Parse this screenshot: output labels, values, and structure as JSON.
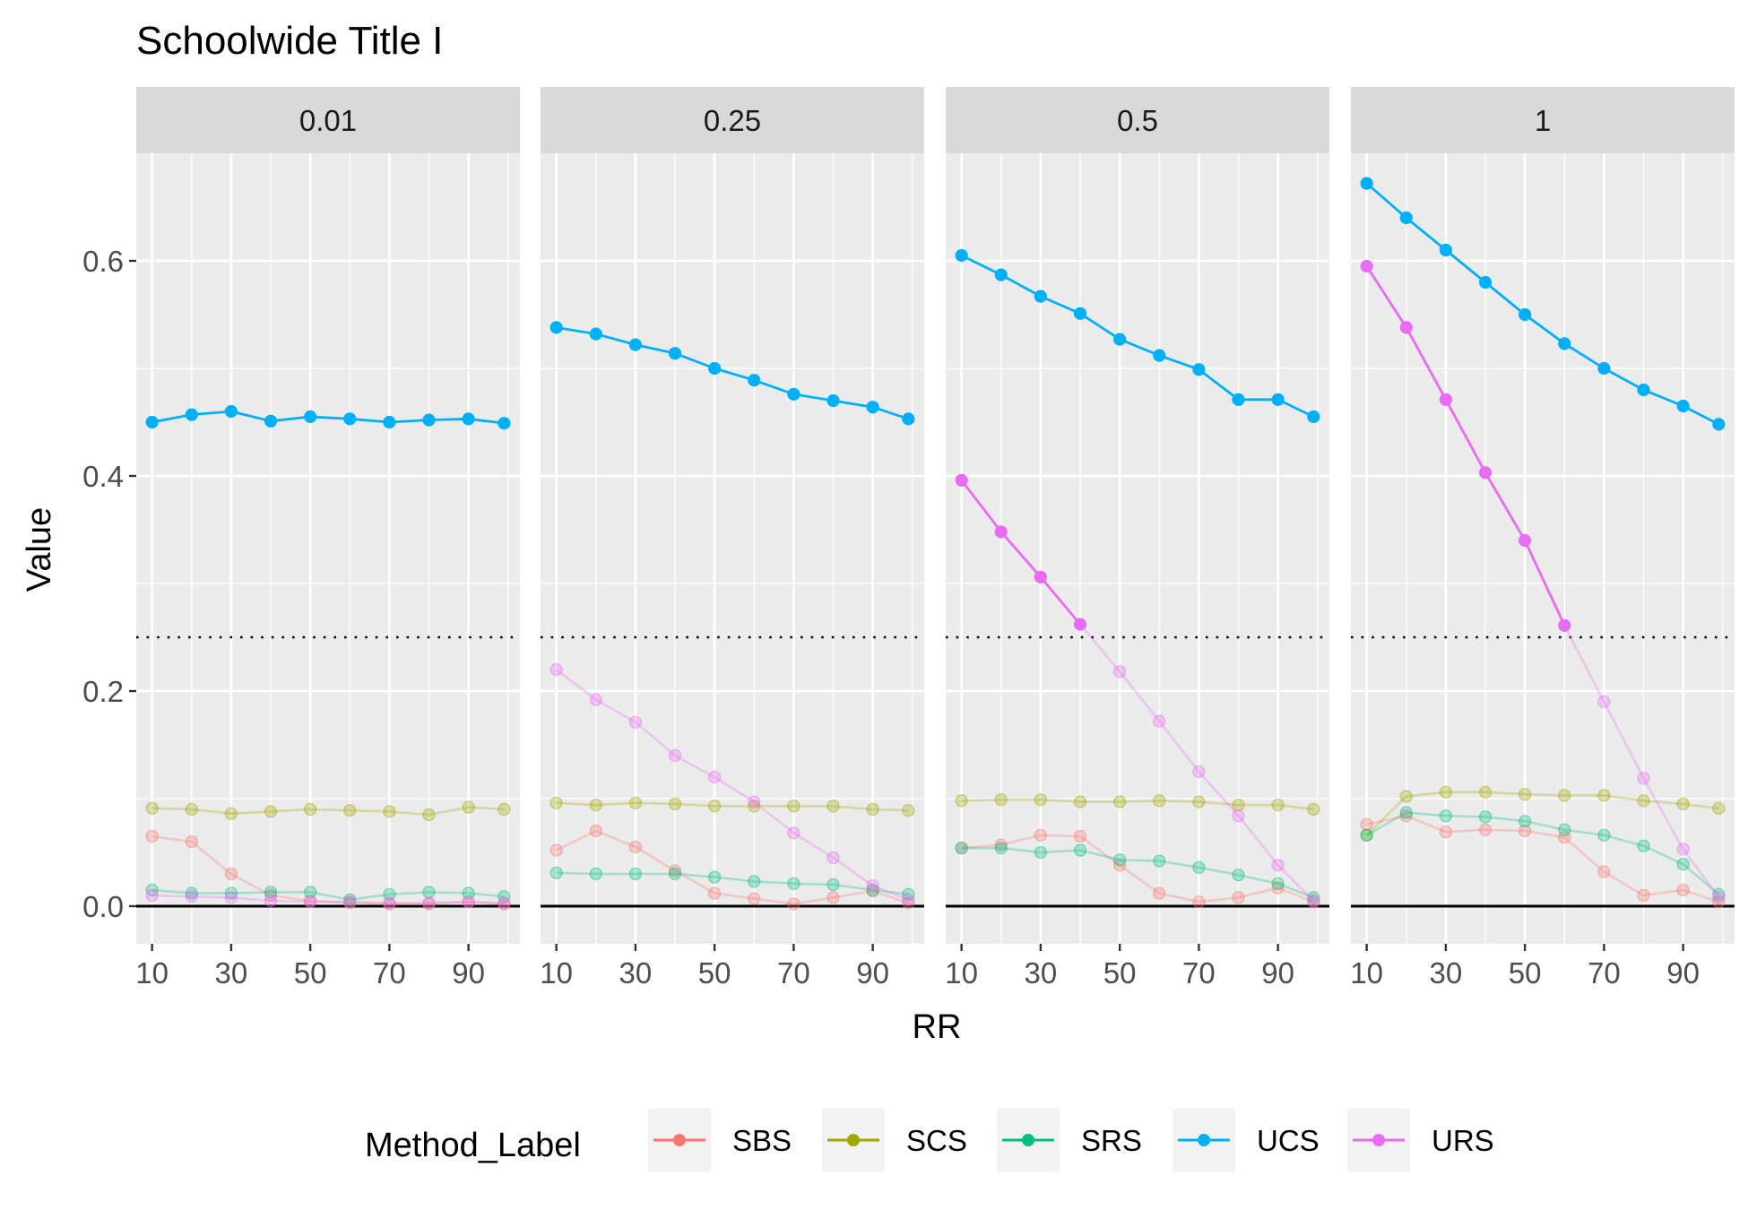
{
  "chart_data": {
    "type": "line",
    "title": "Schoolwide Title I",
    "xlabel": "RR",
    "ylabel": "Value",
    "x": [
      10,
      20,
      30,
      40,
      50,
      60,
      70,
      80,
      90,
      99
    ],
    "x_ticks": [
      10,
      30,
      50,
      70,
      90
    ],
    "x_tick_labels": [
      "10",
      "30",
      "50",
      "70",
      "90"
    ],
    "y_ticks": [
      0.0,
      0.2,
      0.4,
      0.6
    ],
    "y_tick_labels": [
      "0.0",
      "0.2",
      "0.4",
      "0.6"
    ],
    "xlim": [
      6,
      103
    ],
    "ylim": [
      -0.035,
      0.7
    ],
    "reference_lines": [
      {
        "y": 0,
        "style": "solid",
        "color": "#000000"
      },
      {
        "y": 0.25,
        "style": "dotted",
        "color": "#000000"
      }
    ],
    "grid": true,
    "legend": {
      "title": "Method_Label",
      "position": "bottom"
    },
    "colors": {
      "SBS": "#F8766D",
      "SCS": "#A3A500",
      "SRS": "#00BF7D",
      "UCS": "#00B0F6",
      "URS": "#E76BF3",
      "panel_bg": "#EBEBEB",
      "strip_bg": "#D9D9D9"
    },
    "panels": [
      {
        "label": "0.01",
        "series": [
          {
            "name": "SBS",
            "values": [
              0.065,
              0.06,
              0.03,
              0.01,
              0.005,
              0.003,
              0.002,
              0.002,
              0.004,
              0.002
            ],
            "highlight": []
          },
          {
            "name": "SCS",
            "values": [
              0.091,
              0.09,
              0.086,
              0.088,
              0.09,
              0.089,
              0.088,
              0.085,
              0.092,
              0.09
            ],
            "highlight": []
          },
          {
            "name": "SRS",
            "values": [
              0.015,
              0.012,
              0.012,
              0.013,
              0.013,
              0.006,
              0.011,
              0.013,
              0.012,
              0.009
            ],
            "highlight": []
          },
          {
            "name": "UCS",
            "values": [
              0.45,
              0.457,
              0.46,
              0.451,
              0.455,
              0.453,
              0.45,
              0.452,
              0.453,
              0.449
            ],
            "highlight": [
              0,
              1,
              2,
              3,
              4,
              5,
              6,
              7,
              8,
              9
            ]
          },
          {
            "name": "URS",
            "values": [
              0.01,
              0.009,
              0.008,
              0.005,
              0.004,
              0.004,
              0.003,
              0.003,
              0.004,
              0.003
            ],
            "highlight": []
          }
        ]
      },
      {
        "label": "0.25",
        "series": [
          {
            "name": "SBS",
            "values": [
              0.052,
              0.07,
              0.055,
              0.033,
              0.012,
              0.007,
              0.002,
              0.008,
              0.014,
              0.003
            ],
            "highlight": []
          },
          {
            "name": "SCS",
            "values": [
              0.096,
              0.094,
              0.096,
              0.095,
              0.093,
              0.093,
              0.093,
              0.093,
              0.09,
              0.089
            ],
            "highlight": []
          },
          {
            "name": "SRS",
            "values": [
              0.031,
              0.03,
              0.03,
              0.03,
              0.027,
              0.023,
              0.021,
              0.02,
              0.015,
              0.011
            ],
            "highlight": []
          },
          {
            "name": "UCS",
            "values": [
              0.538,
              0.532,
              0.522,
              0.514,
              0.5,
              0.489,
              0.476,
              0.47,
              0.464,
              0.453
            ],
            "highlight": [
              0,
              1,
              2,
              3,
              4,
              5,
              6,
              7,
              8,
              9
            ]
          },
          {
            "name": "URS",
            "values": [
              0.22,
              0.192,
              0.171,
              0.14,
              0.12,
              0.097,
              0.068,
              0.045,
              0.019,
              0.006
            ],
            "highlight": []
          }
        ]
      },
      {
        "label": "0.5",
        "series": [
          {
            "name": "SBS",
            "values": [
              0.054,
              0.057,
              0.066,
              0.065,
              0.038,
              0.012,
              0.004,
              0.008,
              0.017,
              0.004
            ],
            "highlight": []
          },
          {
            "name": "SCS",
            "values": [
              0.098,
              0.099,
              0.099,
              0.097,
              0.097,
              0.098,
              0.097,
              0.094,
              0.094,
              0.09
            ],
            "highlight": []
          },
          {
            "name": "SRS",
            "values": [
              0.054,
              0.054,
              0.05,
              0.052,
              0.043,
              0.042,
              0.036,
              0.029,
              0.021,
              0.008
            ],
            "highlight": []
          },
          {
            "name": "UCS",
            "values": [
              0.605,
              0.587,
              0.567,
              0.551,
              0.527,
              0.512,
              0.499,
              0.471,
              0.471,
              0.455
            ],
            "highlight": [
              0,
              1,
              2,
              3,
              4,
              5,
              6,
              7,
              8,
              9
            ]
          },
          {
            "name": "URS",
            "values": [
              0.396,
              0.348,
              0.306,
              0.262,
              0.218,
              0.172,
              0.125,
              0.084,
              0.038,
              0.005
            ],
            "highlight": [
              0,
              1,
              2,
              3
            ]
          }
        ]
      },
      {
        "label": "1",
        "series": [
          {
            "name": "SBS",
            "values": [
              0.076,
              0.084,
              0.069,
              0.071,
              0.07,
              0.064,
              0.032,
              0.01,
              0.015,
              0.004
            ],
            "highlight": []
          },
          {
            "name": "SCS",
            "values": [
              0.066,
              0.102,
              0.106,
              0.106,
              0.104,
              0.103,
              0.103,
              0.098,
              0.095,
              0.091
            ],
            "highlight": []
          },
          {
            "name": "SRS",
            "values": [
              0.066,
              0.087,
              0.084,
              0.083,
              0.079,
              0.071,
              0.066,
              0.056,
              0.039,
              0.011
            ],
            "highlight": []
          },
          {
            "name": "UCS",
            "values": [
              0.672,
              0.64,
              0.61,
              0.58,
              0.55,
              0.523,
              0.5,
              0.48,
              0.465,
              0.448
            ],
            "highlight": [
              0,
              1,
              2,
              3,
              4,
              5,
              6,
              7,
              8,
              9
            ]
          },
          {
            "name": "URS",
            "values": [
              0.595,
              0.538,
              0.471,
              0.403,
              0.34,
              0.261,
              0.19,
              0.119,
              0.053,
              0.008
            ],
            "highlight": [
              0,
              1,
              2,
              3,
              4,
              5
            ]
          }
        ]
      }
    ]
  }
}
